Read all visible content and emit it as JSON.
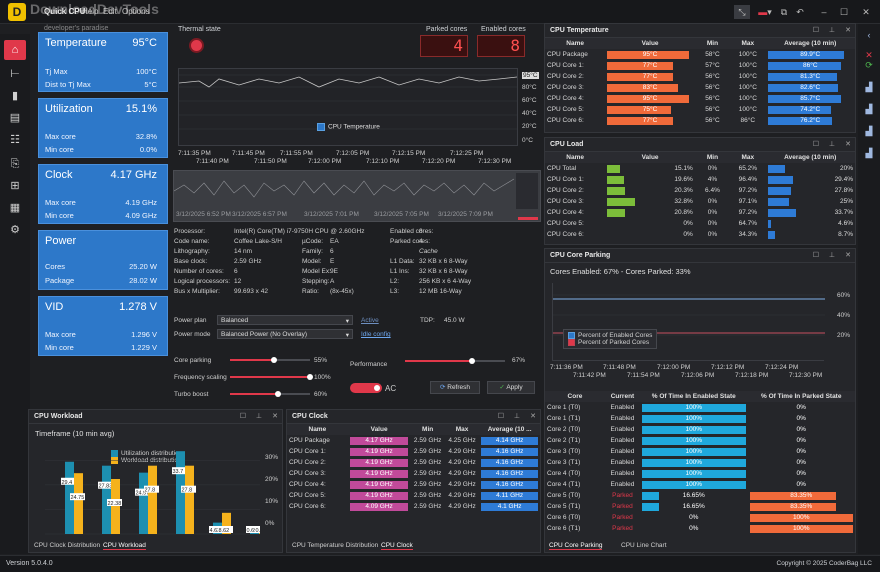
{
  "app": {
    "name": "Quick CPU",
    "menu": [
      "Help",
      "Edit",
      "Options"
    ],
    "watermark": "DownloadDevTools",
    "watermark_sub": "developer's paradise",
    "version": "Version  5.0.4.0",
    "copyright": "Copyright © 2025 CoderBag LLC"
  },
  "cards": [
    {
      "title": "Temperature",
      "value": "95°C",
      "rows": [
        [
          "Tj Max",
          "100°C"
        ],
        [
          "Dist to Tj Max",
          "5°C"
        ]
      ]
    },
    {
      "title": "Utilization",
      "value": "15.1%",
      "rows": [
        [
          "Max core",
          "32.8%"
        ],
        [
          "Min core",
          "0.0%"
        ]
      ]
    },
    {
      "title": "Clock",
      "value": "4.17 GHz",
      "rows": [
        [
          "Max core",
          "4.19 GHz"
        ],
        [
          "Min core",
          "4.09 GHz"
        ]
      ]
    },
    {
      "title": "Power",
      "value": "",
      "rows": [
        [
          "Cores",
          "25.20 W"
        ],
        [
          "Package",
          "28.02 W"
        ]
      ]
    },
    {
      "title": "VID",
      "value": "1.278 V",
      "rows": [
        [
          "Max core",
          "1.296 V"
        ],
        [
          "Min core",
          "1.229 V"
        ]
      ]
    }
  ],
  "center": {
    "thermal_state": "Thermal state",
    "parked_cores_label": "Parked cores",
    "parked_cores": "4",
    "enabled_cores_label": "Enabled cores",
    "enabled_cores": "8",
    "temp_chart": {
      "legend": "CPU Temperature",
      "ticks_y": [
        "95°C",
        "80°C",
        "60°C",
        "40°C",
        "20°C",
        "0°C"
      ],
      "ticks_x1": [
        "7:11:35 PM",
        "7:11:45 PM",
        "7:11:55 PM",
        "7:12:05 PM",
        "7:12:15 PM",
        "7:12:25 PM"
      ],
      "ticks_x2": [
        "7:11:40 PM",
        "7:11:50 PM",
        "7:12:00 PM",
        "7:12:10 PM",
        "7:12:20 PM",
        "7:12:30 PM"
      ]
    },
    "hist_dates": [
      "3/12/2025 6:52 PM",
      "3/12/2025 6:57 PM",
      "3/12/2025 7:01 PM",
      "3/12/2025 7:05 PM",
      "3/12/2025 7:09 PM"
    ],
    "info_left": [
      [
        "Processor:",
        "Intel(R) Core(TM) i7-9750H CPU @ 2.60GHz"
      ],
      [
        "Code name:",
        "Coffee Lake-S/H"
      ],
      [
        "Lithography:",
        "14 nm"
      ],
      [
        "Base clock:",
        "2.59 GHz"
      ],
      [
        "Number of cores:",
        "6"
      ],
      [
        "Logical processors:",
        "12"
      ],
      [
        "Bus x Multiplier:",
        "99.693 x 42"
      ]
    ],
    "info_mid": [
      [
        "",
        ""
      ],
      [
        "µCode:",
        "EA"
      ],
      [
        "Family:",
        "6"
      ],
      [
        "Model:",
        "E"
      ],
      [
        "Model Ex:",
        "9E"
      ],
      [
        "Stepping:",
        "A"
      ],
      [
        "Ratio:",
        "(8x-45x)"
      ]
    ],
    "info_right": [
      [
        "Enabled cores:",
        "8"
      ],
      [
        "Parked cores:",
        "4"
      ],
      [
        "",
        "Cache"
      ],
      [
        "L1 Data:",
        "32 KB x 6  8-Way"
      ],
      [
        "L1 Ins:",
        "32 KB x 6  8-Way"
      ],
      [
        "L2:",
        "256 KB x 6  4-Way"
      ],
      [
        "L3:",
        "12 MB  16-Way"
      ]
    ],
    "power_plan_label": "Power plan",
    "power_plan": "Balanced",
    "power_plan_state": "Active",
    "power_mode_label": "Power mode",
    "power_mode": "Balanced Power (No Overlay)",
    "idle_config": "Idle config",
    "tdp_label": "TDP:",
    "tdp": "45.0 W",
    "sliders": [
      {
        "label": "Core parking",
        "value": "55%",
        "level": 0.55
      },
      {
        "label": "Frequency scaling",
        "value": "100%",
        "level": 1.0
      },
      {
        "label": "Turbo boost",
        "value": "60%",
        "level": 0.6
      }
    ],
    "performance_label": "Performance",
    "performance_value": "67%",
    "performance_level": 0.67,
    "ac_label": "AC",
    "refresh": "Refresh",
    "apply": "Apply"
  },
  "cpu_temperature": {
    "title": "CPU Temperature",
    "headers": [
      "Name",
      "Value",
      "Min",
      "Max",
      "Average (10 min)"
    ],
    "rows": [
      [
        "CPU Package",
        "95°C",
        "58°C",
        "100°C",
        "89.9°C"
      ],
      [
        "CPU Core 1:",
        "77°C",
        "57°C",
        "100°C",
        "86°C"
      ],
      [
        "CPU Core 2:",
        "77°C",
        "56°C",
        "100°C",
        "81.3°C"
      ],
      [
        "CPU Core 3:",
        "83°C",
        "56°C",
        "100°C",
        "82.6°C"
      ],
      [
        "CPU Core 4:",
        "95°C",
        "56°C",
        "100°C",
        "85.7°C"
      ],
      [
        "CPU Core 5:",
        "75°C",
        "56°C",
        "100°C",
        "74.2°C"
      ],
      [
        "CPU Core 6:",
        "77°C",
        "56°C",
        "86°C",
        "76.2°C"
      ]
    ],
    "value_levels": [
      0.95,
      0.77,
      0.77,
      0.83,
      0.95,
      0.75,
      0.77
    ],
    "avg_levels": [
      0.9,
      0.86,
      0.81,
      0.83,
      0.86,
      0.74,
      0.76
    ]
  },
  "cpu_load": {
    "title": "CPU Load",
    "headers": [
      "Name",
      "Value",
      "Min",
      "Max",
      "Average (10 min)"
    ],
    "rows": [
      [
        "CPU Total",
        "15.1%",
        "0%",
        "65.2%",
        "20%"
      ],
      [
        "CPU Core 1:",
        "19.6%",
        "4%",
        "96.4%",
        "29.4%"
      ],
      [
        "CPU Core 2:",
        "20.3%",
        "6.4%",
        "97.2%",
        "27.8%"
      ],
      [
        "CPU Core 3:",
        "32.8%",
        "0%",
        "97.1%",
        "25%"
      ],
      [
        "CPU Core 4:",
        "20.8%",
        "0%",
        "97.2%",
        "33.7%"
      ],
      [
        "CPU Core 5:",
        "0%",
        "0%",
        "64.7%",
        "4.6%"
      ],
      [
        "CPU Core 6:",
        "0%",
        "0%",
        "34.3%",
        "8.7%"
      ]
    ],
    "value_levels": [
      0.151,
      0.196,
      0.203,
      0.328,
      0.208,
      0,
      0
    ],
    "avg_levels": [
      0.2,
      0.294,
      0.278,
      0.25,
      0.337,
      0.046,
      0.087
    ]
  },
  "core_parking": {
    "title": "CPU Core Parking",
    "summary": "Cores Enabled: 67% - Cores Parked: 33%",
    "legend": [
      "Percent of Enabled Cores",
      "Percent of Parked Cores"
    ],
    "ticks_y": [
      "60%",
      "40%",
      "20%"
    ],
    "ticks_x1": [
      "7:11:36 PM",
      "7:11:48 PM",
      "7:12:00 PM",
      "7:12:12 PM",
      "7:12:24 PM"
    ],
    "ticks_x2": [
      "7:11:42 PM",
      "7:11:54 PM",
      "7:12:06 PM",
      "7:12:18 PM",
      "7:12:30 PM"
    ],
    "headers": [
      "Core",
      "Current",
      "% Of Time In Enabled State",
      "% Of Time In Parked State"
    ],
    "rows": [
      [
        "Core 1 (T0)",
        "Enabled",
        "100%",
        "0%"
      ],
      [
        "Core 1 (T1)",
        "Enabled",
        "100%",
        "0%"
      ],
      [
        "Core 2 (T0)",
        "Enabled",
        "100%",
        "0%"
      ],
      [
        "Core 2 (T1)",
        "Enabled",
        "100%",
        "0%"
      ],
      [
        "Core 3 (T0)",
        "Enabled",
        "100%",
        "0%"
      ],
      [
        "Core 3 (T1)",
        "Enabled",
        "100%",
        "0%"
      ],
      [
        "Core 4 (T0)",
        "Enabled",
        "100%",
        "0%"
      ],
      [
        "Core 4 (T1)",
        "Enabled",
        "100%",
        "0%"
      ],
      [
        "Core 5 (T0)",
        "Parked",
        "16.65%",
        "83.35%"
      ],
      [
        "Core 5 (T1)",
        "Parked",
        "16.65%",
        "83.35%"
      ],
      [
        "Core 6 (T0)",
        "Parked",
        "0%",
        "100%"
      ],
      [
        "Core 6 (T1)",
        "Parked",
        "0%",
        "100%"
      ]
    ],
    "enabled_levels": [
      1,
      1,
      1,
      1,
      1,
      1,
      1,
      1,
      0.1665,
      0.1665,
      0,
      0
    ],
    "parked_levels": [
      0,
      0,
      0,
      0,
      0,
      0,
      0,
      0,
      0.8335,
      0.8335,
      1,
      1
    ],
    "tabs": [
      "CPU Core Parking",
      "CPU Line Chart"
    ]
  },
  "cpu_workload": {
    "title": "CPU Workload",
    "timeframe": "Timeframe (10 min avg)",
    "legend": [
      "Utilization distribution",
      "Workload distribution"
    ],
    "ticks_y": [
      "30%",
      "20%",
      "10%",
      "0%"
    ],
    "chart_data": {
      "type": "bar",
      "categories": [
        "1",
        "2",
        "3",
        "4",
        "5",
        "6"
      ],
      "ylim": [
        0,
        35
      ],
      "series": [
        {
          "name": "Utilization distribution",
          "values": [
            29.4,
            27.8,
            24.97,
            33.7,
            4.63,
            0.69
          ]
        },
        {
          "name": "Workload distribution",
          "values": [
            24.75,
            22.38,
            27.8,
            27.8,
            8.62,
            0.57
          ]
        }
      ],
      "labels_util": [
        "29.4",
        "27.83",
        "24.97",
        "33.7",
        "4.63",
        "0.69"
      ],
      "labels_work": [
        "24.75",
        "22.38",
        "27.8",
        "27.8",
        "8.62",
        "0.57"
      ]
    },
    "tabs": [
      "CPU Clock Distribution",
      "CPU Workload"
    ]
  },
  "cpu_clock": {
    "title": "CPU Clock",
    "headers": [
      "Name",
      "Value",
      "Min",
      "Max",
      "Average (10 ..."
    ],
    "rows": [
      [
        "CPU Package",
        "4.17 GHz",
        "2.59 GHz",
        "4.25 GHz",
        "4.14 GHz"
      ],
      [
        "CPU Core 1:",
        "4.19 GHz",
        "2.59 GHz",
        "4.29 GHz",
        "4.16 GHz"
      ],
      [
        "CPU Core 2:",
        "4.19 GHz",
        "2.59 GHz",
        "4.29 GHz",
        "4.16 GHz"
      ],
      [
        "CPU Core 3:",
        "4.19 GHz",
        "2.59 GHz",
        "4.29 GHz",
        "4.16 GHz"
      ],
      [
        "CPU Core 4:",
        "4.19 GHz",
        "2.59 GHz",
        "4.29 GHz",
        "4.16 GHz"
      ],
      [
        "CPU Core 5:",
        "4.19 GHz",
        "2.59 GHz",
        "4.29 GHz",
        "4.11 GHz"
      ],
      [
        "CPU Core 6:",
        "4.09 GHz",
        "2.59 GHz",
        "4.29 GHz",
        "4.1 GHz"
      ]
    ],
    "tabs": [
      "CPU Temperature Distribution",
      "CPU Clock"
    ]
  },
  "colors": {
    "accent": "#e0384a",
    "card": "#2d78c9",
    "temp_bar": "#f06a3a",
    "load_bar": "#7cbd3a",
    "avg_bar": "#2e7bd6",
    "clock_bar": "#c14a9a",
    "park_enabled": "#1fa8dc",
    "park_parked": "#f06a3a",
    "util": "#1d8fb0",
    "work": "#f5b21c"
  }
}
